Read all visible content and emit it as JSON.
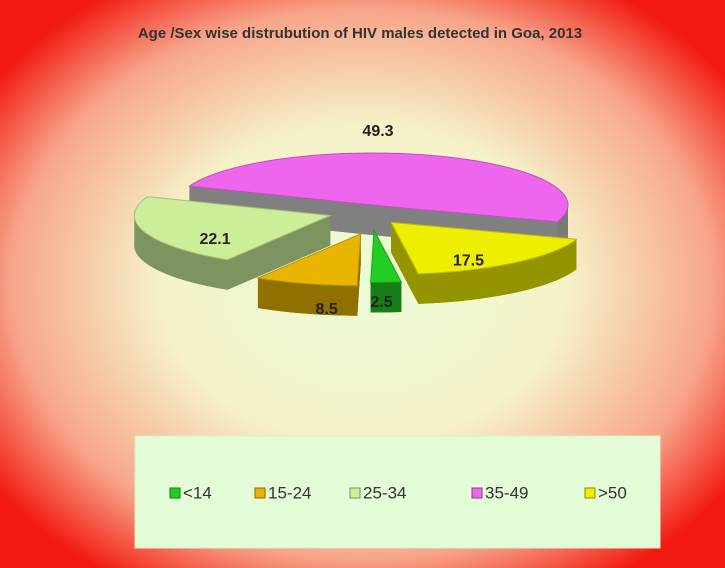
{
  "chart_data": {
    "type": "pie3d",
    "title": "Age /Sex wise distrubution of  HIV males detected in Goa, 2013",
    "categories": [
      "<14",
      "15-24",
      "25-34",
      "35-49",
      ">50"
    ],
    "values": [
      2.5,
      8.5,
      22.1,
      49.3,
      17.5
    ],
    "colors": [
      "#22cc22",
      "#e8b400",
      "#ccee99",
      "#ee66ee",
      "#eeee00"
    ],
    "legend": "bottom"
  }
}
